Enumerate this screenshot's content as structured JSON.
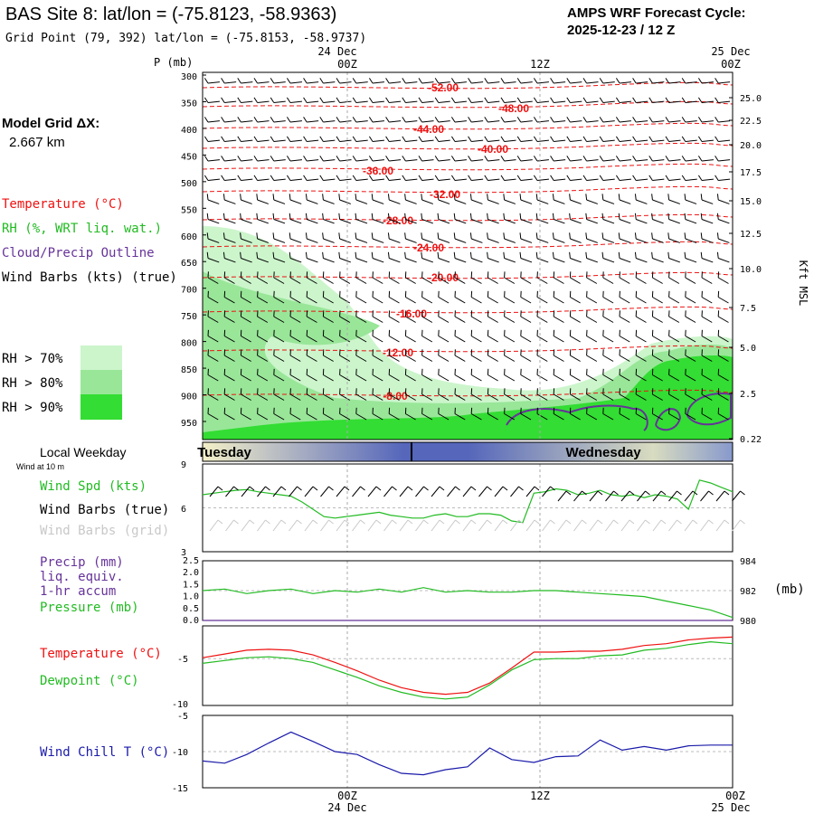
{
  "header": {
    "title": "BAS Site 8:  lat/lon = (-75.8123, -58.9363)",
    "grid_point": "Grid Point (79, 392) lat/lon = (-75.8153, -58.9737)",
    "forecast_label": "AMPS WRF Forecast Cycle:",
    "forecast_cycle": "2025-12-23 / 12  Z"
  },
  "model_grid": {
    "label": "Model Grid ΔX:",
    "value": "2.667 km"
  },
  "legend": {
    "temperature": "Temperature (°C)",
    "rh": "RH (%, WRT liq. wat.)",
    "cloud": "Cloud/Precip Outline",
    "wind_barbs": "Wind Barbs (kts) (true)",
    "rh70": "RH > 70%",
    "rh80": "RH > 80%",
    "rh90": "RH > 90%"
  },
  "colors": {
    "temperature": "#ee1111",
    "rh": "#22bb22",
    "cloud": "#663399",
    "rh70": "#ccf5cc",
    "rh80": "#99e699",
    "rh90": "#33dd33",
    "wind_chill": "#1a1aaa",
    "grid": "#aaaaaa",
    "day_band": "#5566bb"
  },
  "time_axis": {
    "top_date_left": "24 Dec",
    "top_date_right": "25 Dec",
    "top_ticks": [
      "00Z",
      "12Z",
      "00Z"
    ],
    "bottom_ticks": [
      "00Z",
      "12Z",
      "00Z"
    ],
    "bottom_date_left": "24 Dec",
    "bottom_date_right": "25 Dec"
  },
  "cross_section": {
    "p_axis_label": "P (mb)",
    "pressure_levels": [
      "300",
      "350",
      "400",
      "450",
      "500",
      "550",
      "600",
      "650",
      "700",
      "750",
      "800",
      "850",
      "900",
      "950"
    ],
    "kft_axis_label": "Kft MSL",
    "kft_levels": [
      "25.0",
      "22.5",
      "20.0",
      "17.5",
      "15.0",
      "12.5",
      "10.0",
      "7.5",
      "5.0",
      "2.5",
      "0.22"
    ],
    "isotherm_labels": [
      "-52.00",
      "-48.00",
      "-44.00",
      "-40.00",
      "-36.00",
      "-32.00",
      "-28.00",
      "-24.00",
      "-20.00",
      "-16.00",
      "-12.00",
      "-8.00"
    ]
  },
  "weekday": {
    "label": "Local Weekday",
    "sub_label": "Wind at 10 m",
    "day1": "Tuesday",
    "day2": "Wednesday"
  },
  "panels": {
    "wind": {
      "spd": "Wind Spd (kts)",
      "barbs_true": "Wind Barbs (true)",
      "barbs_grid": "Wind Barbs (grid)",
      "y_ticks": [
        "9",
        "6",
        "3"
      ]
    },
    "precip": {
      "precip": "Precip (mm)",
      "liq": "liq. equiv.",
      "accum": "1-hr accum",
      "pressure": "Pressure (mb)",
      "left_ticks": [
        "2.5",
        "2.0",
        "1.5",
        "1.0",
        "0.5",
        "0.0"
      ],
      "right_ticks": [
        "984",
        "982",
        "980"
      ],
      "unit": "(mb)"
    },
    "temp": {
      "temperature": "Temperature (°C)",
      "dewpoint": "Dewpoint (°C)",
      "y_ticks": [
        "-5",
        "-10"
      ]
    },
    "chill": {
      "label": "Wind Chill T (°C)",
      "y_ticks": [
        "-5",
        "-10",
        "-15"
      ]
    }
  },
  "chart_data": [
    {
      "type": "line",
      "title": "Wind Spd (kts)",
      "ylim": [
        3,
        9
      ],
      "x_hours": [
        0,
        3,
        6,
        9,
        12,
        15,
        18,
        21,
        24,
        27,
        30,
        33,
        36,
        39,
        42,
        45,
        48,
        51,
        54,
        57,
        60,
        63,
        66,
        69,
        72,
        75,
        78,
        81,
        84,
        87,
        90,
        93,
        96,
        99,
        102,
        105,
        108,
        111,
        114,
        117,
        120,
        123,
        126,
        129,
        132,
        135,
        138,
        141,
        144
      ],
      "series": [
        {
          "name": "Wind Spd (kts)",
          "values": [
            6.9,
            7.0,
            7.1,
            7.2,
            7.25,
            7.1,
            7.0,
            6.9,
            6.8,
            6.4,
            5.9,
            5.4,
            5.3,
            5.4,
            5.5,
            5.6,
            5.7,
            5.5,
            5.4,
            5.3,
            5.3,
            5.5,
            5.6,
            5.4,
            5.4,
            5.6,
            5.6,
            5.5,
            5.1,
            5.0,
            7.0,
            7.1,
            7.3,
            7.2,
            6.9,
            7.0,
            7.2,
            6.9,
            6.8,
            6.9,
            6.7,
            6.9,
            6.8,
            6.6,
            5.9,
            7.9,
            7.7,
            7.4,
            7.1
          ]
        }
      ]
    },
    {
      "type": "line",
      "title": "Precip / Pressure",
      "ylim": [
        0,
        2.5
      ],
      "y2lim": [
        980,
        984
      ],
      "x_hours": [
        0,
        6,
        12,
        18,
        24,
        30,
        36,
        42,
        48,
        54,
        60,
        66,
        72,
        78,
        84,
        90,
        96,
        102,
        108,
        114,
        120,
        126,
        132,
        138,
        144
      ],
      "series": [
        {
          "name": "Pressure (mb)",
          "axis": "right",
          "values": [
            982.0,
            982.1,
            981.8,
            982.0,
            982.1,
            981.8,
            982.0,
            981.9,
            982.1,
            981.9,
            982.2,
            981.9,
            982.0,
            981.9,
            981.9,
            982.0,
            982.0,
            981.9,
            981.8,
            981.7,
            981.6,
            981.3,
            981.0,
            980.7,
            980.2
          ]
        },
        {
          "name": "Precip (mm)",
          "axis": "left",
          "values": [
            0,
            0,
            0,
            0,
            0,
            0,
            0,
            0,
            0,
            0,
            0,
            0,
            0,
            0,
            0,
            0,
            0,
            0,
            0,
            0,
            0,
            0,
            0,
            0,
            0
          ]
        }
      ]
    },
    {
      "type": "line",
      "title": "Temperature / Dewpoint",
      "ylim": [
        -10,
        -1.5
      ],
      "x_hours": [
        0,
        6,
        12,
        18,
        24,
        30,
        36,
        42,
        48,
        54,
        60,
        66,
        72,
        78,
        84,
        90,
        96,
        102,
        108,
        114,
        120,
        126,
        132,
        138,
        144
      ],
      "series": [
        {
          "name": "Temperature (°C)",
          "values": [
            -4.9,
            -4.5,
            -4.1,
            -4.0,
            -4.1,
            -4.6,
            -5.4,
            -6.3,
            -7.3,
            -8.1,
            -8.6,
            -8.8,
            -8.6,
            -7.6,
            -6.0,
            -4.3,
            -4.3,
            -4.2,
            -4.2,
            -4.0,
            -3.6,
            -3.4,
            -3.0,
            -2.8,
            -2.7
          ]
        },
        {
          "name": "Dewpoint (°C)",
          "values": [
            -5.5,
            -5.2,
            -4.9,
            -4.8,
            -5.0,
            -5.4,
            -6.2,
            -7.0,
            -7.9,
            -8.6,
            -9.1,
            -9.3,
            -9.1,
            -7.8,
            -6.2,
            -5.1,
            -5.0,
            -5.0,
            -4.7,
            -4.6,
            -4.1,
            -3.9,
            -3.5,
            -3.2,
            -3.4
          ]
        }
      ]
    },
    {
      "type": "line",
      "title": "Wind Chill T (°C)",
      "ylim": [
        -15,
        -5
      ],
      "x_hours": [
        0,
        6,
        12,
        18,
        24,
        30,
        36,
        42,
        48,
        54,
        60,
        66,
        72,
        78,
        84,
        90,
        96,
        102,
        108,
        114,
        120,
        126,
        132,
        138,
        144
      ],
      "series": [
        {
          "name": "Wind Chill T (°C)",
          "values": [
            -11.3,
            -11.6,
            -10.4,
            -8.8,
            -7.3,
            -8.6,
            -10.0,
            -10.4,
            -11.8,
            -13.0,
            -13.2,
            -12.5,
            -12.1,
            -9.5,
            -11.1,
            -11.5,
            -10.7,
            -10.6,
            -8.4,
            -9.8,
            -9.3,
            -9.8,
            -9.2,
            -9.1,
            -9.1
          ]
        }
      ]
    }
  ]
}
